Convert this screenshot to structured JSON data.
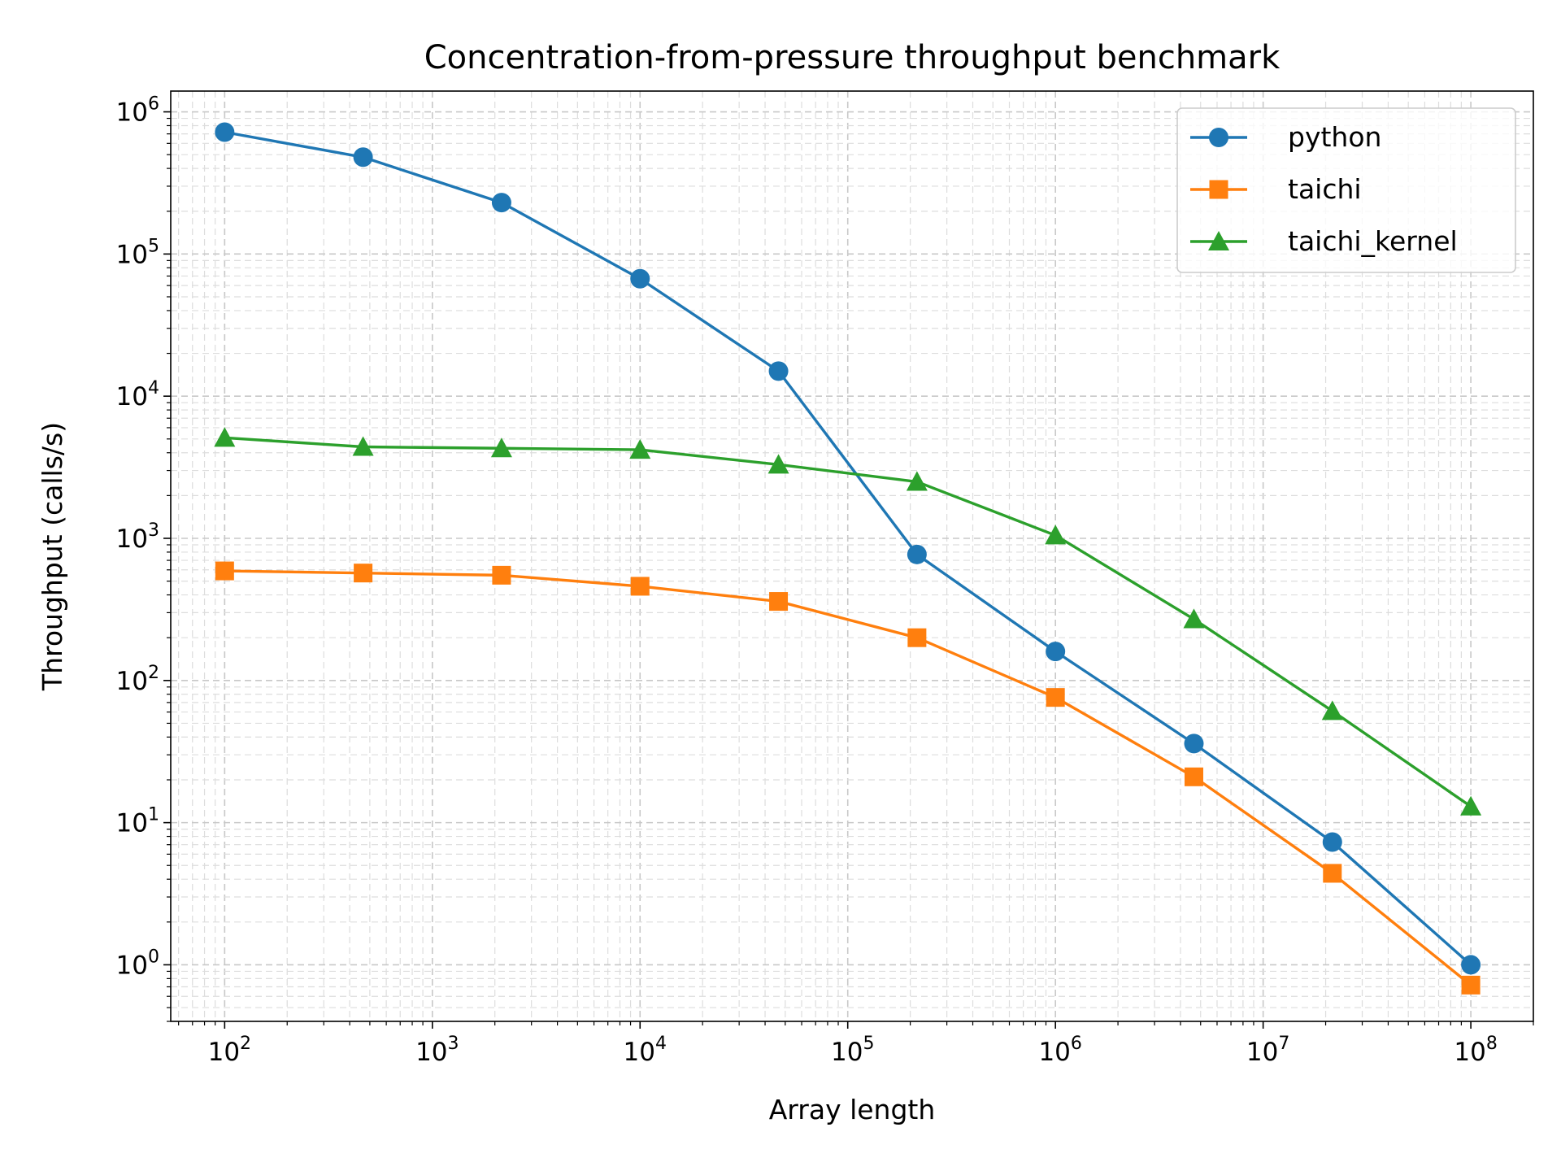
{
  "chart_data": {
    "type": "line",
    "title": "Concentration-from-pressure throughput benchmark",
    "xlabel": "Array length",
    "ylabel": "Throughput (calls/s)",
    "xscale": "log",
    "yscale": "log",
    "xlim": [
      55,
      200000000
    ],
    "ylim": [
      0.4,
      1400000
    ],
    "grid": true,
    "grid_which": "both",
    "legend_position": "top-right",
    "x_ticks": [
      {
        "value": 100,
        "base": "10",
        "exp": "2"
      },
      {
        "value": 1000,
        "base": "10",
        "exp": "3"
      },
      {
        "value": 10000,
        "base": "10",
        "exp": "4"
      },
      {
        "value": 100000,
        "base": "10",
        "exp": "5"
      },
      {
        "value": 1000000,
        "base": "10",
        "exp": "6"
      },
      {
        "value": 10000000,
        "base": "10",
        "exp": "7"
      },
      {
        "value": 100000000,
        "base": "10",
        "exp": "8"
      }
    ],
    "y_ticks": [
      {
        "value": 1,
        "base": "10",
        "exp": "0"
      },
      {
        "value": 10,
        "base": "10",
        "exp": "1"
      },
      {
        "value": 100,
        "base": "10",
        "exp": "2"
      },
      {
        "value": 1000,
        "base": "10",
        "exp": "3"
      },
      {
        "value": 10000,
        "base": "10",
        "exp": "4"
      },
      {
        "value": 100000,
        "base": "10",
        "exp": "5"
      },
      {
        "value": 1000000,
        "base": "10",
        "exp": "6"
      }
    ],
    "x": [
      100,
      464,
      2154,
      10000,
      46416,
      215443,
      1000000,
      4641589,
      21544347,
      100000000
    ],
    "series": [
      {
        "name": "python",
        "marker": "circle",
        "color": "#1f77b4",
        "values": [
          720000,
          480000,
          230000,
          67000,
          15000,
          770,
          160,
          36,
          7.3,
          1.0
        ]
      },
      {
        "name": "taichi",
        "marker": "square",
        "color": "#ff7f0e",
        "values": [
          590,
          570,
          550,
          460,
          360,
          200,
          76,
          21,
          4.4,
          0.72
        ]
      },
      {
        "name": "taichi_kernel",
        "marker": "triangle",
        "color": "#2ca02c",
        "values": [
          5100,
          4400,
          4300,
          4200,
          3300,
          2500,
          1050,
          270,
          61,
          13
        ]
      }
    ]
  }
}
